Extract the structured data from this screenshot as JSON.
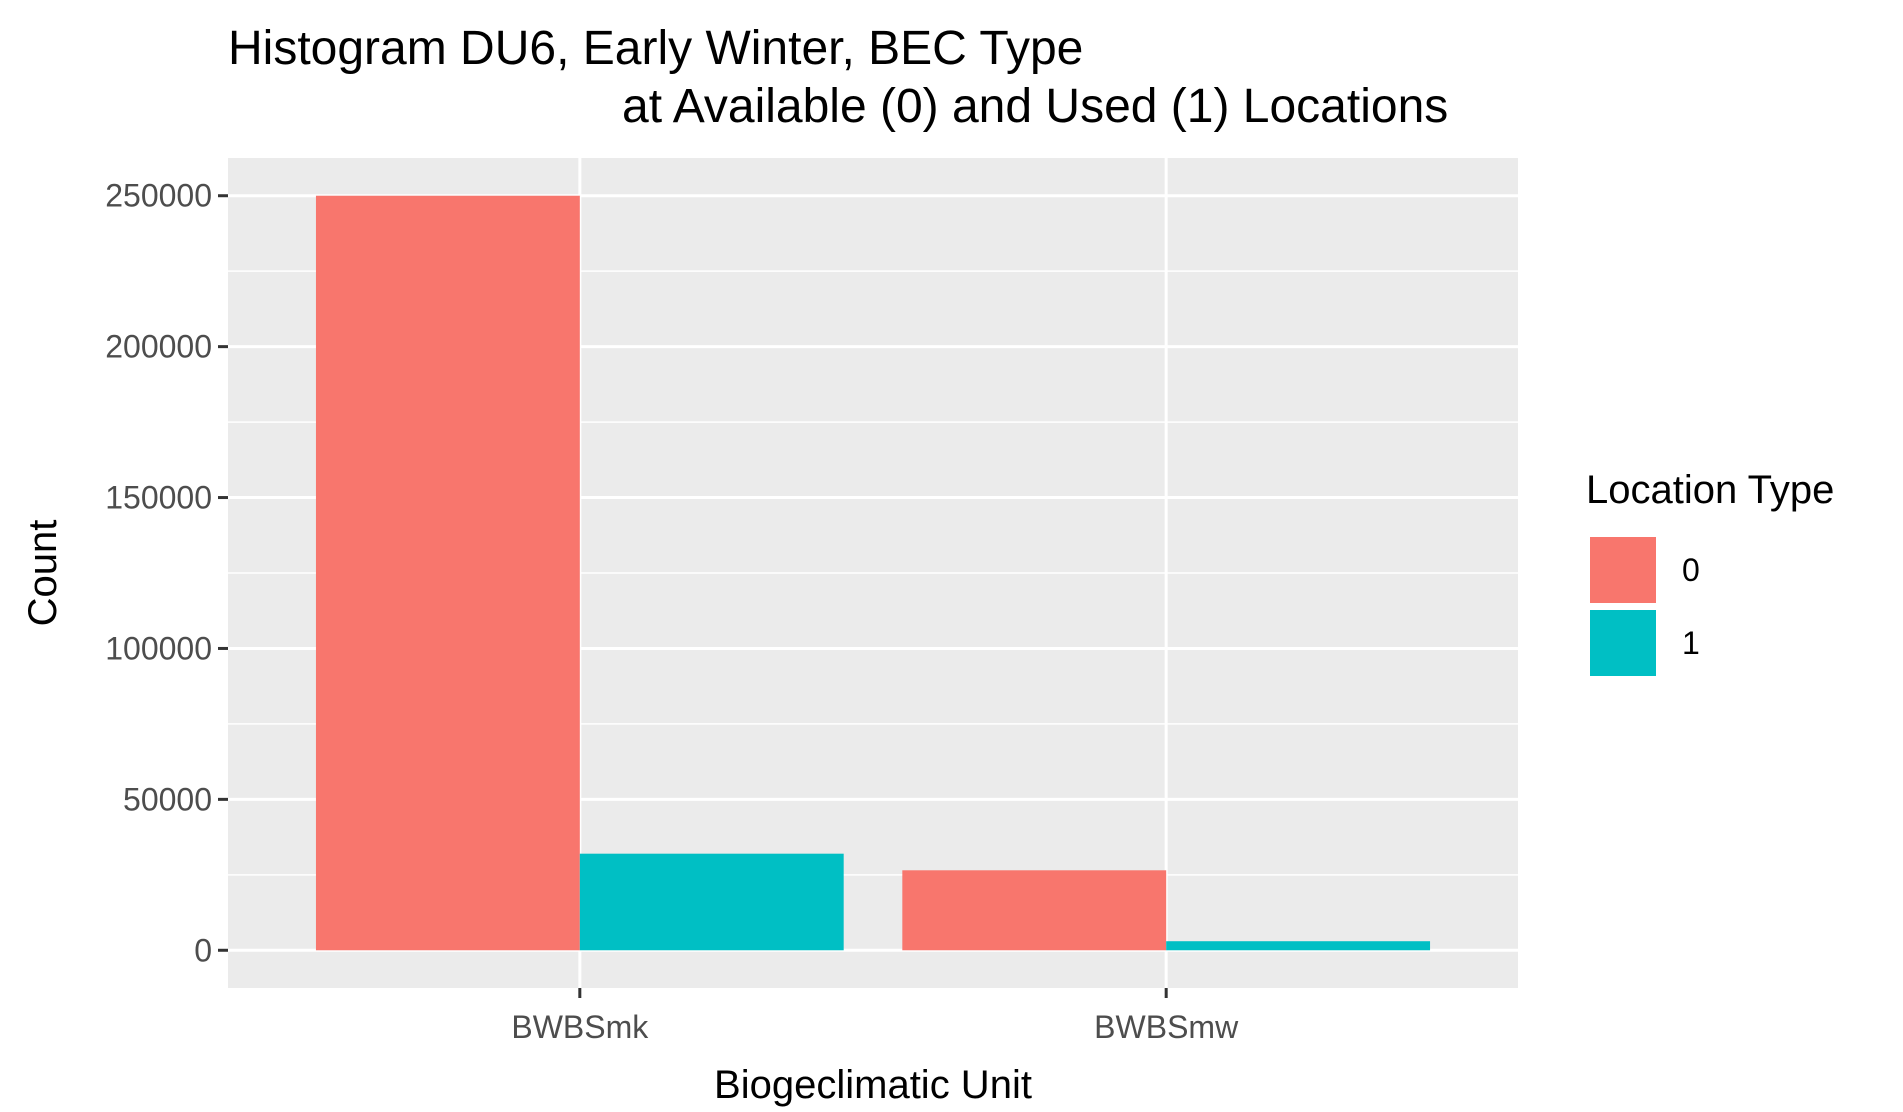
{
  "chart_data": {
    "type": "bar",
    "title_line1": "Histogram DU6, Early Winter, BEC Type",
    "title_line2": "at Available (0) and Used (1) Locations",
    "xlabel": "Biogeclimatic Unit",
    "ylabel": "Count",
    "categories": [
      "BWBSmk",
      "BWBSmw"
    ],
    "series": [
      {
        "name": "0",
        "color": "#F8766D",
        "values": [
          250000,
          26500
        ]
      },
      {
        "name": "1",
        "color": "#00BFC4",
        "values": [
          32000,
          3000
        ]
      }
    ],
    "ylim": [
      -12500,
      262500
    ],
    "yticks": [
      0,
      50000,
      100000,
      150000,
      200000,
      250000
    ],
    "ytick_labels": [
      "0",
      "50000",
      "100000",
      "150000",
      "200000",
      "250000"
    ],
    "grid": true,
    "panel_background": "#EBEBEB",
    "grid_color": "#FFFFFF",
    "legend": {
      "title": "Location Type",
      "position": "right",
      "labels": [
        "0",
        "1"
      ]
    }
  }
}
